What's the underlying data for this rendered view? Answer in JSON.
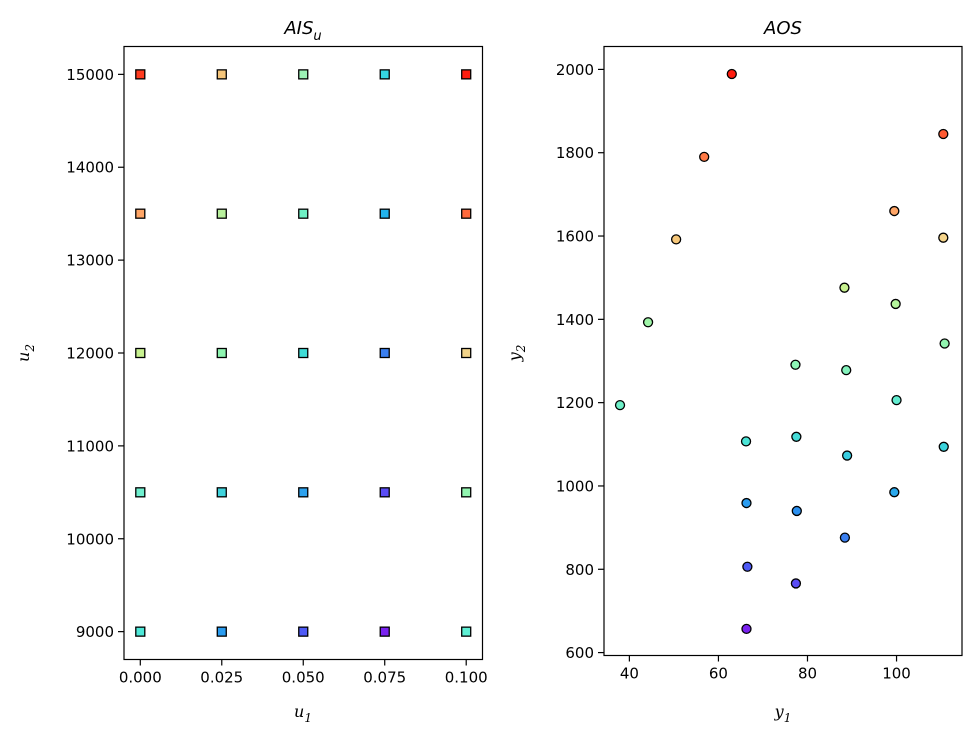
{
  "chart_data": [
    {
      "type": "scatter",
      "title": "AIS",
      "title_sub": "u",
      "xlabel": "u",
      "xlabel_sub": "1",
      "ylabel": "u",
      "ylabel_sub": "2",
      "marker": "square",
      "xlim": [
        -0.005,
        0.105
      ],
      "ylim": [
        8700,
        15300
      ],
      "xticks": [
        0.0,
        0.025,
        0.05,
        0.075,
        0.1
      ],
      "xtick_labels": [
        "0.000",
        "0.025",
        "0.050",
        "0.075",
        "0.100"
      ],
      "yticks": [
        9000,
        10000,
        11000,
        12000,
        13000,
        14000,
        15000
      ],
      "ytick_labels": [
        "9000",
        "10000",
        "11000",
        "12000",
        "13000",
        "14000",
        "15000"
      ],
      "points": [
        {
          "x": 0.0,
          "y": 15000,
          "color": "#ff3b1f"
        },
        {
          "x": 0.025,
          "y": 15000,
          "color": "#f5c57a"
        },
        {
          "x": 0.05,
          "y": 15000,
          "color": "#9df2b6"
        },
        {
          "x": 0.075,
          "y": 15000,
          "color": "#34d6e2"
        },
        {
          "x": 0.1,
          "y": 15000,
          "color": "#ff1c0e"
        },
        {
          "x": 0.0,
          "y": 13500,
          "color": "#ffa566"
        },
        {
          "x": 0.025,
          "y": 13500,
          "color": "#b8f09c"
        },
        {
          "x": 0.05,
          "y": 13500,
          "color": "#6ef0c4"
        },
        {
          "x": 0.075,
          "y": 13500,
          "color": "#22b3ec"
        },
        {
          "x": 0.1,
          "y": 13500,
          "color": "#ff6a3d"
        },
        {
          "x": 0.0,
          "y": 12000,
          "color": "#c8f290"
        },
        {
          "x": 0.025,
          "y": 12000,
          "color": "#8ef5b0"
        },
        {
          "x": 0.05,
          "y": 12000,
          "color": "#3fdcd6"
        },
        {
          "x": 0.075,
          "y": 12000,
          "color": "#3a7ff0"
        },
        {
          "x": 0.1,
          "y": 12000,
          "color": "#f2d48a"
        },
        {
          "x": 0.0,
          "y": 10500,
          "color": "#6ff0cf"
        },
        {
          "x": 0.025,
          "y": 10500,
          "color": "#3fd3dc"
        },
        {
          "x": 0.05,
          "y": 10500,
          "color": "#2ea2ee"
        },
        {
          "x": 0.075,
          "y": 10500,
          "color": "#5a4cf5"
        },
        {
          "x": 0.1,
          "y": 10500,
          "color": "#92f5b0"
        },
        {
          "x": 0.0,
          "y": 9000,
          "color": "#4de8d8"
        },
        {
          "x": 0.025,
          "y": 9000,
          "color": "#2a9cf0"
        },
        {
          "x": 0.05,
          "y": 9000,
          "color": "#4e5af5"
        },
        {
          "x": 0.075,
          "y": 9000,
          "color": "#7a22f0"
        },
        {
          "x": 0.1,
          "y": 9000,
          "color": "#5ef0d4"
        }
      ]
    },
    {
      "type": "scatter",
      "title": "AOS",
      "xlabel": "y",
      "xlabel_sub": "1",
      "ylabel": "y",
      "ylabel_sub": "2",
      "marker": "circle",
      "xlim": [
        34.3,
        114.7
      ],
      "ylim": [
        593,
        2055
      ],
      "xticks": [
        40,
        60,
        80,
        100
      ],
      "xtick_labels": [
        "40",
        "60",
        "80",
        "100"
      ],
      "yticks": [
        600,
        800,
        1000,
        1200,
        1400,
        1600,
        1800,
        2000
      ],
      "ytick_labels": [
        "600",
        "800",
        "1000",
        "1200",
        "1400",
        "1600",
        "1800",
        "2000"
      ],
      "points": [
        {
          "x": 63.0,
          "y": 1989,
          "color": "#ff1c0e"
        },
        {
          "x": 110.5,
          "y": 1845,
          "color": "#ff5a32"
        },
        {
          "x": 56.8,
          "y": 1790,
          "color": "#ff7a46"
        },
        {
          "x": 99.5,
          "y": 1660,
          "color": "#ffa566"
        },
        {
          "x": 50.5,
          "y": 1592,
          "color": "#f7c87a"
        },
        {
          "x": 110.5,
          "y": 1596,
          "color": "#f5d48a"
        },
        {
          "x": 88.3,
          "y": 1476,
          "color": "#c8f290"
        },
        {
          "x": 99.8,
          "y": 1437,
          "color": "#b5f59c"
        },
        {
          "x": 44.2,
          "y": 1393,
          "color": "#9ff5a8"
        },
        {
          "x": 110.8,
          "y": 1342,
          "color": "#92f5b0"
        },
        {
          "x": 77.3,
          "y": 1291,
          "color": "#8ef5b6"
        },
        {
          "x": 88.7,
          "y": 1278,
          "color": "#84f2bc"
        },
        {
          "x": 37.9,
          "y": 1194,
          "color": "#6ef0c8"
        },
        {
          "x": 100.0,
          "y": 1206,
          "color": "#62ecd0"
        },
        {
          "x": 77.5,
          "y": 1118,
          "color": "#45dcd8"
        },
        {
          "x": 66.2,
          "y": 1107,
          "color": "#4be4d6"
        },
        {
          "x": 88.9,
          "y": 1073,
          "color": "#38cde0"
        },
        {
          "x": 110.6,
          "y": 1094,
          "color": "#3cd3dc"
        },
        {
          "x": 99.5,
          "y": 985,
          "color": "#2aa8ec"
        },
        {
          "x": 66.3,
          "y": 959,
          "color": "#2a9cf0"
        },
        {
          "x": 77.6,
          "y": 940,
          "color": "#2b90f0"
        },
        {
          "x": 88.4,
          "y": 876,
          "color": "#3a7ff0"
        },
        {
          "x": 66.5,
          "y": 806,
          "color": "#4e5af5"
        },
        {
          "x": 77.4,
          "y": 766,
          "color": "#5a4cf5"
        },
        {
          "x": 66.3,
          "y": 657,
          "color": "#7a22f0"
        }
      ]
    }
  ]
}
